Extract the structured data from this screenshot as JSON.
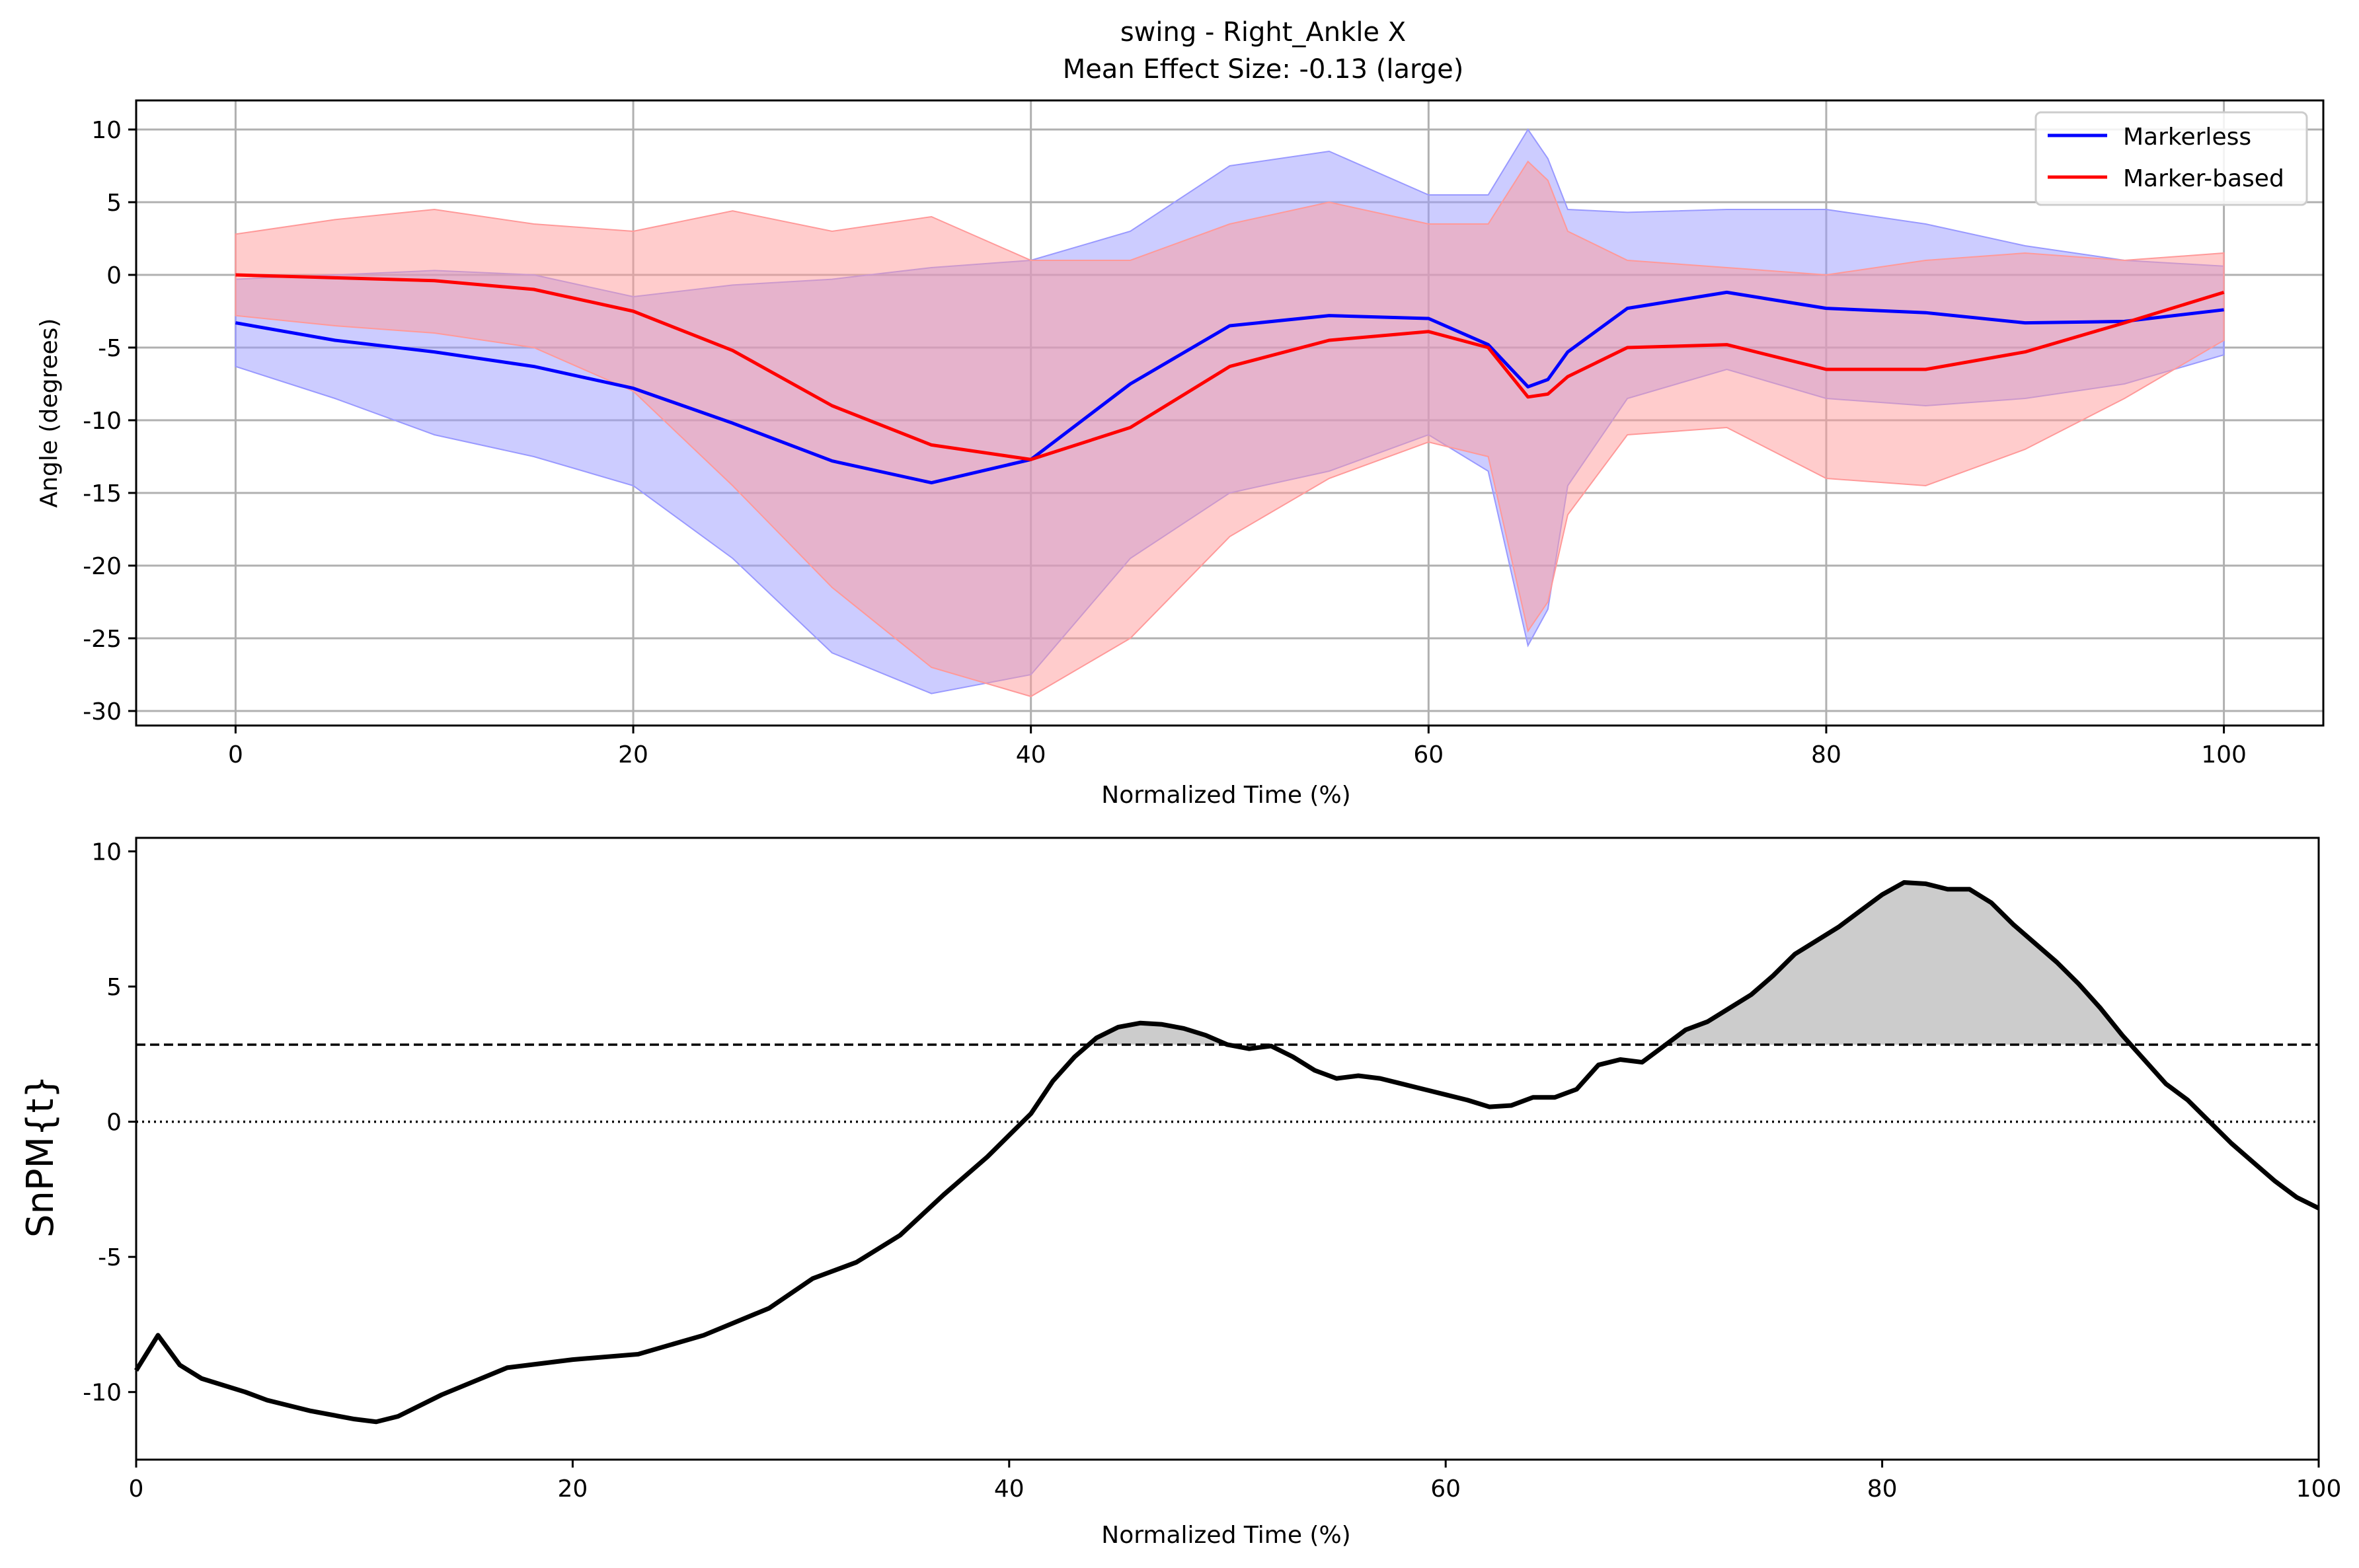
{
  "chart_data": [
    {
      "type": "line",
      "title": "swing - Right_Ankle X",
      "subtitle": "Mean Effect Size: -0.13 (large)",
      "xlabel": "Normalized Time (%)",
      "ylabel": "Angle (degrees)",
      "xlim": [
        -5,
        105
      ],
      "ylim": [
        -31,
        12
      ],
      "xticks": [
        0,
        20,
        40,
        60,
        80,
        100
      ],
      "yticks": [
        10,
        5,
        0,
        -5,
        -10,
        -15,
        -20,
        -25,
        -30
      ],
      "grid": true,
      "legend_position": "top-right",
      "x": [
        0,
        5,
        10,
        15,
        20,
        25,
        30,
        35,
        40,
        45,
        50,
        55,
        60,
        63,
        65,
        66,
        67,
        70,
        75,
        80,
        85,
        90,
        95,
        100
      ],
      "series": [
        {
          "name": "Markerless",
          "color": "#0000ff",
          "band_color": "#9999ff",
          "mean": [
            -3.3,
            -4.5,
            -5.3,
            -6.3,
            -7.8,
            -10.2,
            -12.8,
            -14.3,
            -12.7,
            -7.5,
            -3.5,
            -2.8,
            -3.0,
            -4.8,
            -7.7,
            -7.2,
            -5.3,
            -2.3,
            -1.2,
            -2.3,
            -2.6,
            -3.3,
            -3.2,
            -2.4
          ],
          "upper": [
            -0.3,
            0.0,
            0.3,
            0.0,
            -1.5,
            -0.7,
            -0.3,
            0.5,
            1.0,
            3.0,
            7.5,
            8.5,
            5.5,
            5.5,
            10.0,
            8.0,
            4.5,
            4.3,
            4.5,
            4.5,
            3.5,
            2.0,
            1.0,
            0.6
          ],
          "lower": [
            -6.3,
            -8.5,
            -11.0,
            -12.5,
            -14.5,
            -19.5,
            -26.0,
            -28.8,
            -27.5,
            -19.5,
            -15.0,
            -13.5,
            -11.0,
            -13.5,
            -25.5,
            -23.0,
            -14.5,
            -8.5,
            -6.5,
            -8.5,
            -9.0,
            -8.5,
            -7.5,
            -5.5
          ]
        },
        {
          "name": "Marker-based",
          "color": "#ff0000",
          "band_color": "#ff9999",
          "mean": [
            0.0,
            -0.2,
            -0.4,
            -1.0,
            -2.5,
            -5.2,
            -9.0,
            -11.7,
            -12.7,
            -10.5,
            -6.3,
            -4.5,
            -3.9,
            -5.0,
            -8.4,
            -8.2,
            -7.0,
            -5.0,
            -4.8,
            -6.5,
            -6.5,
            -5.3,
            -3.3,
            -1.2
          ],
          "upper": [
            2.8,
            3.8,
            4.5,
            3.5,
            3.0,
            4.4,
            3.0,
            4.0,
            1.0,
            1.0,
            3.5,
            5.0,
            3.5,
            3.5,
            7.8,
            6.5,
            3.0,
            1.0,
            0.5,
            0.0,
            1.0,
            1.5,
            1.0,
            1.5
          ],
          "lower": [
            -2.8,
            -3.5,
            -4.0,
            -5.0,
            -8.0,
            -14.5,
            -21.5,
            -27.0,
            -29.0,
            -25.0,
            -18.0,
            -14.0,
            -11.5,
            -12.5,
            -24.5,
            -22.5,
            -16.5,
            -11.0,
            -10.5,
            -14.0,
            -14.5,
            -12.0,
            -8.5,
            -4.5
          ]
        }
      ]
    },
    {
      "type": "line",
      "xlabel": "Normalized Time (%)",
      "ylabel": "SnPM{t}",
      "xlim": [
        0,
        100
      ],
      "ylim": [
        -12.5,
        10.5
      ],
      "xticks": [
        0,
        20,
        40,
        60,
        80,
        100
      ],
      "yticks": [
        10,
        5,
        0,
        -5,
        -10
      ],
      "grid": false,
      "threshold": 2.85,
      "x": [
        0,
        1,
        2,
        3,
        5,
        6,
        8,
        10,
        11,
        12,
        14,
        17,
        20,
        23,
        26,
        29,
        31,
        33,
        35,
        37,
        39,
        40,
        41,
        42,
        43,
        44,
        45,
        46,
        47,
        48,
        49,
        50,
        51,
        52,
        53,
        54,
        55,
        56,
        57,
        58,
        60,
        61,
        62,
        63,
        64,
        65,
        66,
        67,
        68,
        69,
        70,
        71,
        72,
        73,
        74,
        75,
        76,
        77,
        78,
        79,
        80,
        81,
        82,
        83,
        84,
        85,
        86,
        87,
        88,
        89,
        90,
        91,
        92,
        93,
        94,
        95,
        96,
        97,
        98,
        99,
        100
      ],
      "series": [
        {
          "name": "",
          "color": "#000000",
          "fill_above_threshold": "#cccccc",
          "values": [
            -9.2,
            -7.9,
            -9.0,
            -9.5,
            -10.0,
            -10.3,
            -10.7,
            -11.0,
            -11.1,
            -10.9,
            -10.1,
            -9.1,
            -8.8,
            -8.6,
            -7.9,
            -6.9,
            -5.8,
            -5.2,
            -4.2,
            -2.7,
            -1.3,
            -0.5,
            0.3,
            1.5,
            2.4,
            3.1,
            3.5,
            3.65,
            3.6,
            3.45,
            3.2,
            2.85,
            2.7,
            2.8,
            2.4,
            1.9,
            1.6,
            1.7,
            1.6,
            1.4,
            1.0,
            0.8,
            0.55,
            0.6,
            0.9,
            0.9,
            1.2,
            2.1,
            2.3,
            2.2,
            2.8,
            3.4,
            3.7,
            4.2,
            4.7,
            5.4,
            6.2,
            6.7,
            7.2,
            7.8,
            8.4,
            8.85,
            8.8,
            8.6,
            8.6,
            8.1,
            7.3,
            6.6,
            5.9,
            5.1,
            4.2,
            3.2,
            2.3,
            1.4,
            0.8,
            0.0,
            -0.8,
            -1.5,
            -2.2,
            -2.8,
            -3.2
          ]
        }
      ]
    }
  ]
}
